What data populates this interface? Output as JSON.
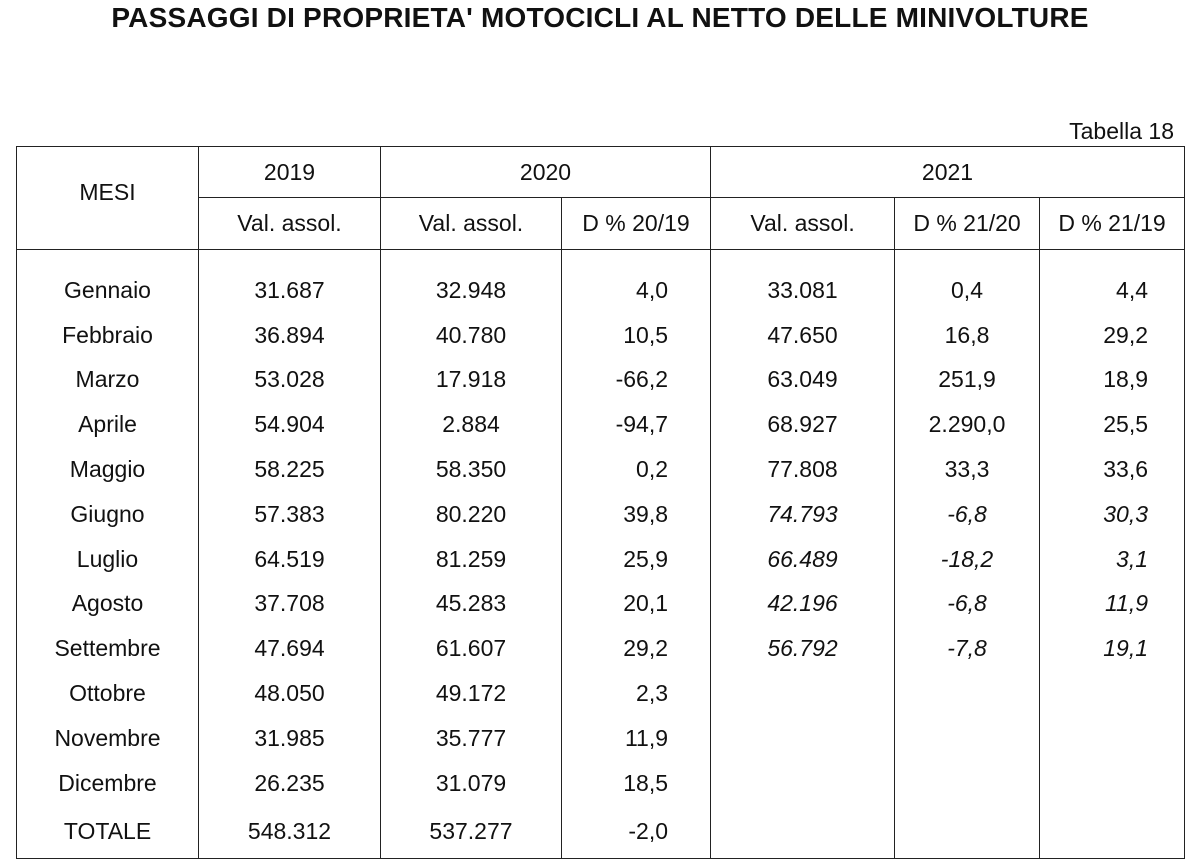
{
  "title": "PASSAGGI DI PROPRIETA' MOTOCICLI AL NETTO DELLE MINIVOLTURE",
  "table_id": "Tabella 18",
  "header": {
    "mesi": "MESI",
    "years": [
      "2019",
      "2020",
      "2021"
    ],
    "subheaders": [
      "Val. assol.",
      "Val. assol.",
      "D % 20/19",
      "Val. assol.",
      "D % 21/20",
      "D % 21/19"
    ]
  },
  "rows": [
    {
      "mese": "Gennaio",
      "v2019": "31.687",
      "v2020": "32.948",
      "d2019_2020": "4,0",
      "v2021": "33.081",
      "d21_20": "0,4",
      "d21_19": "4,4",
      "provisional": false
    },
    {
      "mese": "Febbraio",
      "v2019": "36.894",
      "v2020": "40.780",
      "d2019_2020": "10,5",
      "v2021": "47.650",
      "d21_20": "16,8",
      "d21_19": "29,2",
      "provisional": false
    },
    {
      "mese": "Marzo",
      "v2019": "53.028",
      "v2020": "17.918",
      "d2019_2020": "-66,2",
      "v2021": "63.049",
      "d21_20": "251,9",
      "d21_19": "18,9",
      "provisional": false
    },
    {
      "mese": "Aprile",
      "v2019": "54.904",
      "v2020": "2.884",
      "d2019_2020": "-94,7",
      "v2021": "68.927",
      "d21_20": "2.290,0",
      "d21_19": "25,5",
      "provisional": false
    },
    {
      "mese": "Maggio",
      "v2019": "58.225",
      "v2020": "58.350",
      "d2019_2020": "0,2",
      "v2021": "77.808",
      "d21_20": "33,3",
      "d21_19": "33,6",
      "provisional": false
    },
    {
      "mese": "Giugno",
      "v2019": "57.383",
      "v2020": "80.220",
      "d2019_2020": "39,8",
      "v2021": "74.793",
      "d21_20": "-6,8",
      "d21_19": "30,3",
      "provisional": true
    },
    {
      "mese": "Luglio",
      "v2019": "64.519",
      "v2020": "81.259",
      "d2019_2020": "25,9",
      "v2021": "66.489",
      "d21_20": "-18,2",
      "d21_19": "3,1",
      "provisional": true
    },
    {
      "mese": "Agosto",
      "v2019": "37.708",
      "v2020": "45.283",
      "d2019_2020": "20,1",
      "v2021": "42.196",
      "d21_20": "-6,8",
      "d21_19": "11,9",
      "provisional": true
    },
    {
      "mese": "Settembre",
      "v2019": "47.694",
      "v2020": "61.607",
      "d2019_2020": "29,2",
      "v2021": "56.792",
      "d21_20": "-7,8",
      "d21_19": "19,1",
      "provisional": true
    },
    {
      "mese": "Ottobre",
      "v2019": "48.050",
      "v2020": "49.172",
      "d2019_2020": "2,3",
      "v2021": "",
      "d21_20": "",
      "d21_19": "",
      "provisional": false
    },
    {
      "mese": "Novembre",
      "v2019": "31.985",
      "v2020": "35.777",
      "d2019_2020": "11,9",
      "v2021": "",
      "d21_20": "",
      "d21_19": "",
      "provisional": false
    },
    {
      "mese": "Dicembre",
      "v2019": "26.235",
      "v2020": "31.079",
      "d2019_2020": "18,5",
      "v2021": "",
      "d21_20": "",
      "d21_19": "",
      "provisional": false
    }
  ],
  "total": {
    "mese": "TOTALE",
    "v2019": "548.312",
    "v2020": "537.277",
    "d2019_2020": "-2,0",
    "v2021": "",
    "d21_20": "",
    "d21_19": ""
  }
}
